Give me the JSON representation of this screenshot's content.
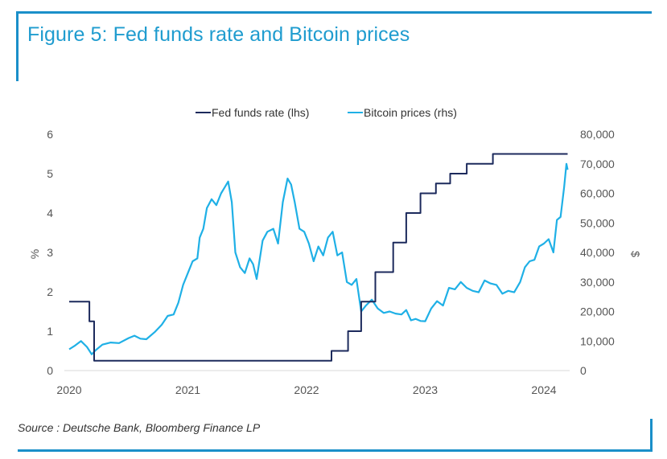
{
  "figure": {
    "title": "Figure 5: Fed funds rate and Bitcoin prices",
    "source": "Source : Deutsche Bank, Bloomberg Finance LP",
    "accent_color": "#1a8fc9",
    "title_color": "#1f9ccf"
  },
  "chart_data": {
    "type": "line",
    "title": "Fed funds rate and Bitcoin prices",
    "xlabel": "",
    "ylabel": "%",
    "y2label": "$",
    "xlim": [
      2020.0,
      2024.2
    ],
    "ylim": [
      0,
      6
    ],
    "y2lim": [
      0,
      80000
    ],
    "x_ticks": [
      2020,
      2021,
      2022,
      2023,
      2024
    ],
    "x_tick_labels": [
      "2020",
      "2021",
      "2022",
      "2023",
      "2024"
    ],
    "y_ticks": [
      0,
      1,
      2,
      3,
      4,
      5,
      6
    ],
    "y_tick_labels": [
      "0",
      "1",
      "2",
      "3",
      "4",
      "5",
      "6"
    ],
    "y2_ticks": [
      0,
      10000,
      20000,
      30000,
      40000,
      50000,
      60000,
      70000,
      80000
    ],
    "y2_tick_labels": [
      "0",
      "10,000",
      "20,000",
      "30,000",
      "40,000",
      "50,000",
      "60,000",
      "70,000",
      "80,000"
    ],
    "grid": false,
    "legend_position": "top-center",
    "series": [
      {
        "name": "Fed funds rate (lhs)",
        "axis": "left",
        "color": "#1c2a5c",
        "step": true,
        "x": [
          2020.0,
          2020.17,
          2020.21,
          2022.21,
          2022.35,
          2022.46,
          2022.58,
          2022.73,
          2022.84,
          2022.96,
          2023.09,
          2023.21,
          2023.35,
          2023.57,
          2024.2
        ],
        "values": [
          1.75,
          1.25,
          0.25,
          0.5,
          1.0,
          1.75,
          2.5,
          3.25,
          4.0,
          4.5,
          4.75,
          5.0,
          5.25,
          5.5,
          5.5
        ]
      },
      {
        "name": "Bitcoin prices (rhs)",
        "axis": "right",
        "color": "#1fb0e6",
        "step": false,
        "x": [
          2020.0,
          2020.05,
          2020.1,
          2020.15,
          2020.19,
          2020.22,
          2020.28,
          2020.35,
          2020.42,
          2020.5,
          2020.55,
          2020.6,
          2020.65,
          2020.72,
          2020.78,
          2020.83,
          2020.88,
          2020.92,
          2020.96,
          2021.0,
          2021.04,
          2021.08,
          2021.1,
          2021.13,
          2021.16,
          2021.2,
          2021.24,
          2021.28,
          2021.31,
          2021.34,
          2021.37,
          2021.4,
          2021.44,
          2021.48,
          2021.52,
          2021.55,
          2021.58,
          2021.63,
          2021.67,
          2021.72,
          2021.76,
          2021.8,
          2021.84,
          2021.87,
          2021.9,
          2021.94,
          2021.98,
          2022.02,
          2022.06,
          2022.1,
          2022.14,
          2022.18,
          2022.22,
          2022.26,
          2022.3,
          2022.34,
          2022.38,
          2022.42,
          2022.46,
          2022.5,
          2022.55,
          2022.6,
          2022.65,
          2022.7,
          2022.75,
          2022.8,
          2022.84,
          2022.88,
          2022.92,
          2022.96,
          2023.0,
          2023.05,
          2023.1,
          2023.15,
          2023.2,
          2023.25,
          2023.3,
          2023.35,
          2023.4,
          2023.45,
          2023.5,
          2023.55,
          2023.6,
          2023.65,
          2023.7,
          2023.75,
          2023.8,
          2023.84,
          2023.88,
          2023.92,
          2023.96,
          2024.0,
          2024.04,
          2024.08,
          2024.11,
          2024.14,
          2024.17,
          2024.19,
          2024.2
        ],
        "values": [
          7200,
          8500,
          10000,
          8000,
          5500,
          6800,
          8800,
          9500,
          9300,
          11000,
          11800,
          10800,
          10600,
          13000,
          15500,
          18500,
          19000,
          23000,
          29000,
          33000,
          37000,
          38000,
          45000,
          48000,
          55000,
          58000,
          56000,
          60000,
          62000,
          64000,
          57000,
          40000,
          35000,
          33000,
          38000,
          36000,
          31000,
          44000,
          47000,
          48000,
          43000,
          57000,
          65000,
          63000,
          57000,
          48000,
          47000,
          43000,
          37000,
          42000,
          39000,
          45000,
          47000,
          39000,
          40000,
          30000,
          29000,
          31000,
          20000,
          22000,
          24000,
          21000,
          19500,
          20000,
          19300,
          19000,
          20500,
          17000,
          17500,
          16800,
          16700,
          21000,
          23500,
          22000,
          28000,
          27500,
          30000,
          28000,
          27000,
          26500,
          30500,
          29500,
          29000,
          26000,
          27000,
          26500,
          30000,
          35000,
          37000,
          37500,
          42000,
          43000,
          44500,
          40000,
          51000,
          52000,
          62000,
          70000,
          68000
        ]
      }
    ]
  }
}
